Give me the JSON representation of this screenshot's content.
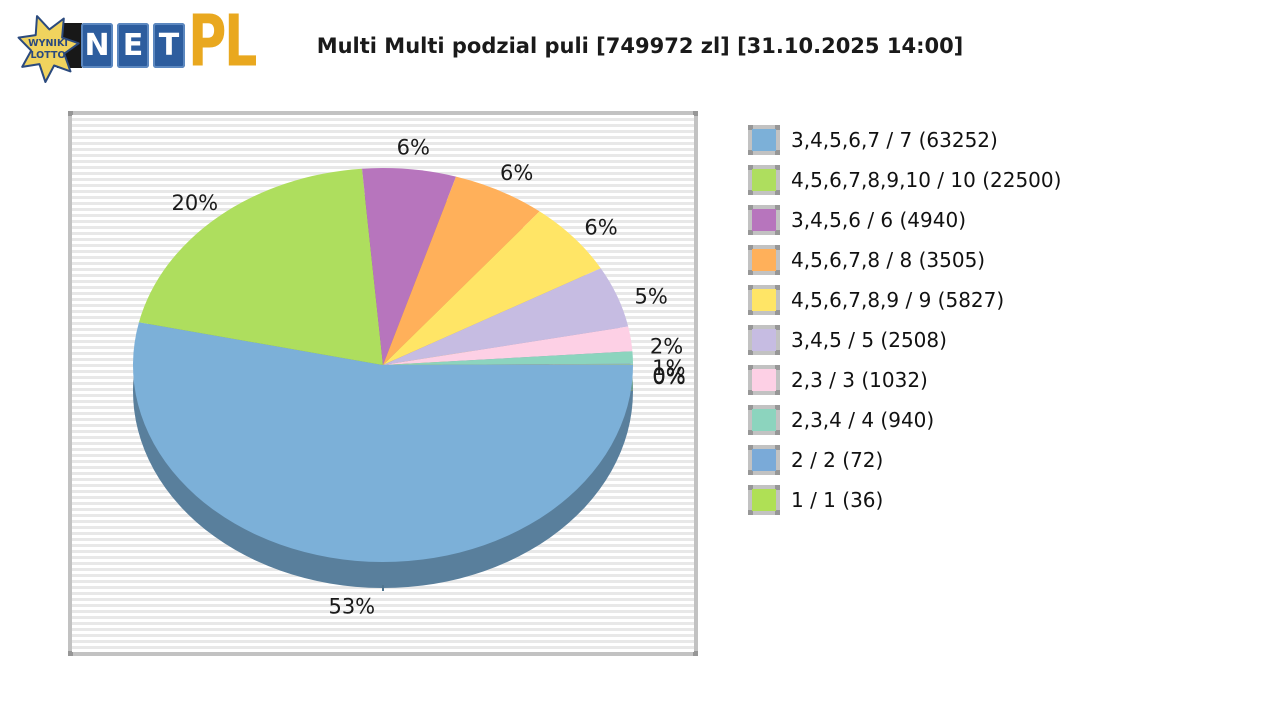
{
  "logo": {
    "star_line1": "WYNIKI",
    "star_line2": "LOTTO",
    "tiles": [
      "N",
      "E",
      "T"
    ],
    "suffix": "PL",
    "colors": {
      "tile_blue": "#2d5d9e",
      "gold": "#e9a81f",
      "star_yellow": "#f0d35e",
      "star_blue": "#2b4a7e"
    }
  },
  "title": "Multi Multi podzial puli [749972 zl] [31.10.2025 14:00]",
  "chart_data": {
    "type": "pie",
    "style": "3d",
    "title": "Multi Multi podzial puli [749972 zl] [31.10.2025 14:00]",
    "pool_zl": 749972,
    "draw_time": "31.10.2025 14:00",
    "start_angle_deg": 0,
    "direction": "clockwise",
    "legend_position": "right",
    "slices": [
      {
        "tier": "3,4,5,6,7 / 7",
        "count": 63252,
        "legend_label": "3,4,5,6,7 / 7 (63252)",
        "percent": 53,
        "percent_label": "53%",
        "color": "#7cb0d8"
      },
      {
        "tier": "4,5,6,7,8,9,10 / 10",
        "count": 22500,
        "legend_label": "4,5,6,7,8,9,10 / 10 (22500)",
        "percent": 20,
        "percent_label": "20%",
        "color": "#aede5e"
      },
      {
        "tier": "3,4,5,6 / 6",
        "count": 4940,
        "legend_label": "3,4,5,6 / 6 (4940)",
        "percent": 6,
        "percent_label": "6%",
        "color": "#b775bd"
      },
      {
        "tier": "4,5,6,7,8 / 8",
        "count": 3505,
        "legend_label": "4,5,6,7,8 / 8 (3505)",
        "percent": 6,
        "percent_label": "6%",
        "color": "#ffb05a"
      },
      {
        "tier": "4,5,6,7,8,9 / 9",
        "count": 5827,
        "legend_label": "4,5,6,7,8,9 / 9 (5827)",
        "percent": 6,
        "percent_label": "6%",
        "color": "#ffe566"
      },
      {
        "tier": "3,4,5 / 5",
        "count": 2508,
        "legend_label": "3,4,5 / 5 (2508)",
        "percent": 5,
        "percent_label": "5%",
        "color": "#c6bce2"
      },
      {
        "tier": "2,3 / 3",
        "count": 1032,
        "legend_label": "2,3 / 3 (1032)",
        "percent": 2,
        "percent_label": "2%",
        "color": "#fdd0e5"
      },
      {
        "tier": "2,3,4 / 4",
        "count": 940,
        "legend_label": "2,3,4 / 4 (940)",
        "percent": 1,
        "percent_label": "1%",
        "color": "#8cd4be"
      },
      {
        "tier": "2 / 2",
        "count": 72,
        "legend_label": "2 / 2 (72)",
        "percent": 0.07,
        "percent_label": "0%",
        "color": "#7aaad8"
      },
      {
        "tier": "1 / 1",
        "count": 36,
        "legend_label": "1 / 1 (36)",
        "percent": 0.03,
        "percent_label": "0%",
        "color": "#afe055"
      }
    ]
  }
}
